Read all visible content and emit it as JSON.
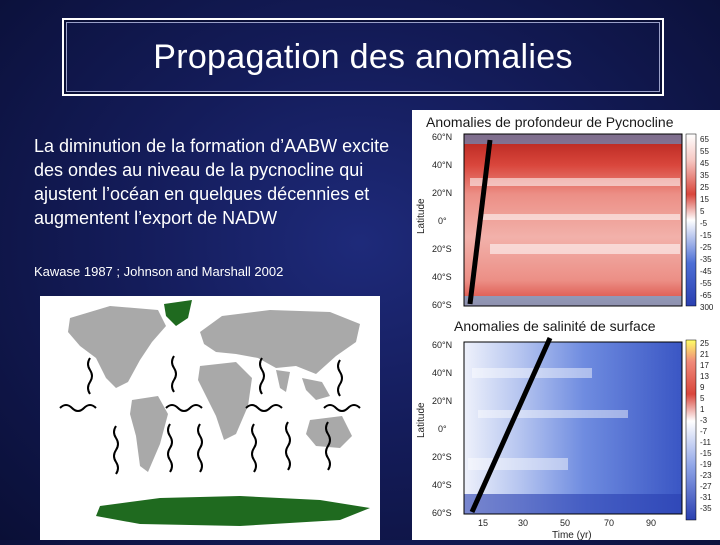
{
  "slide": {
    "title": "Propagation des anomalies",
    "body": "La diminution de la formation d’AABW excite des ondes au niveau de la pycnocline qui ajustent l’océan en quelques décennies et augmentent l’export de NADW",
    "citation": "Kawase 1987 ; Johnson and Marshall 2002"
  },
  "chart_top": {
    "title": "Anomalies de profondeur de Pycnocline",
    "ylabel": "Latitude",
    "yticks": [
      "60°N",
      "40°N",
      "20°N",
      "0°",
      "20°S",
      "40°S",
      "60°S"
    ],
    "colorbar": [
      "65",
      "55",
      "45",
      "35",
      "25",
      "15",
      "5",
      "-5",
      "-15",
      "-25",
      "-35",
      "-45",
      "-55",
      "-65",
      "300"
    ],
    "colors": [
      "#ffffff",
      "#f7c9c4",
      "#ec8f86",
      "#d9463c",
      "#b3221b"
    ]
  },
  "chart_bottom": {
    "title": "Anomalies de salinité de surface",
    "ylabel": "Latitude",
    "xlabel": "Time (yr)",
    "yticks": [
      "60°N",
      "40°N",
      "20°N",
      "0°",
      "20°S",
      "40°S",
      "60°S"
    ],
    "xticks": [
      "15",
      "30",
      "50",
      "70",
      "90"
    ],
    "colorbar": [
      "25",
      "21",
      "17",
      "13",
      "9",
      "5",
      "1",
      "-3",
      "-7",
      "-11",
      "-15",
      "-19",
      "-23",
      "-27",
      "-31",
      "-35"
    ],
    "colors": [
      "#ffffff",
      "#c8d3f4",
      "#8fa5e8",
      "#4d6fd6",
      "#2a3fb0"
    ]
  },
  "map": {
    "land_color": "#a9a9a9",
    "greenland_color": "#1f6a1f",
    "antarctica_color": "#1f6a1f"
  }
}
